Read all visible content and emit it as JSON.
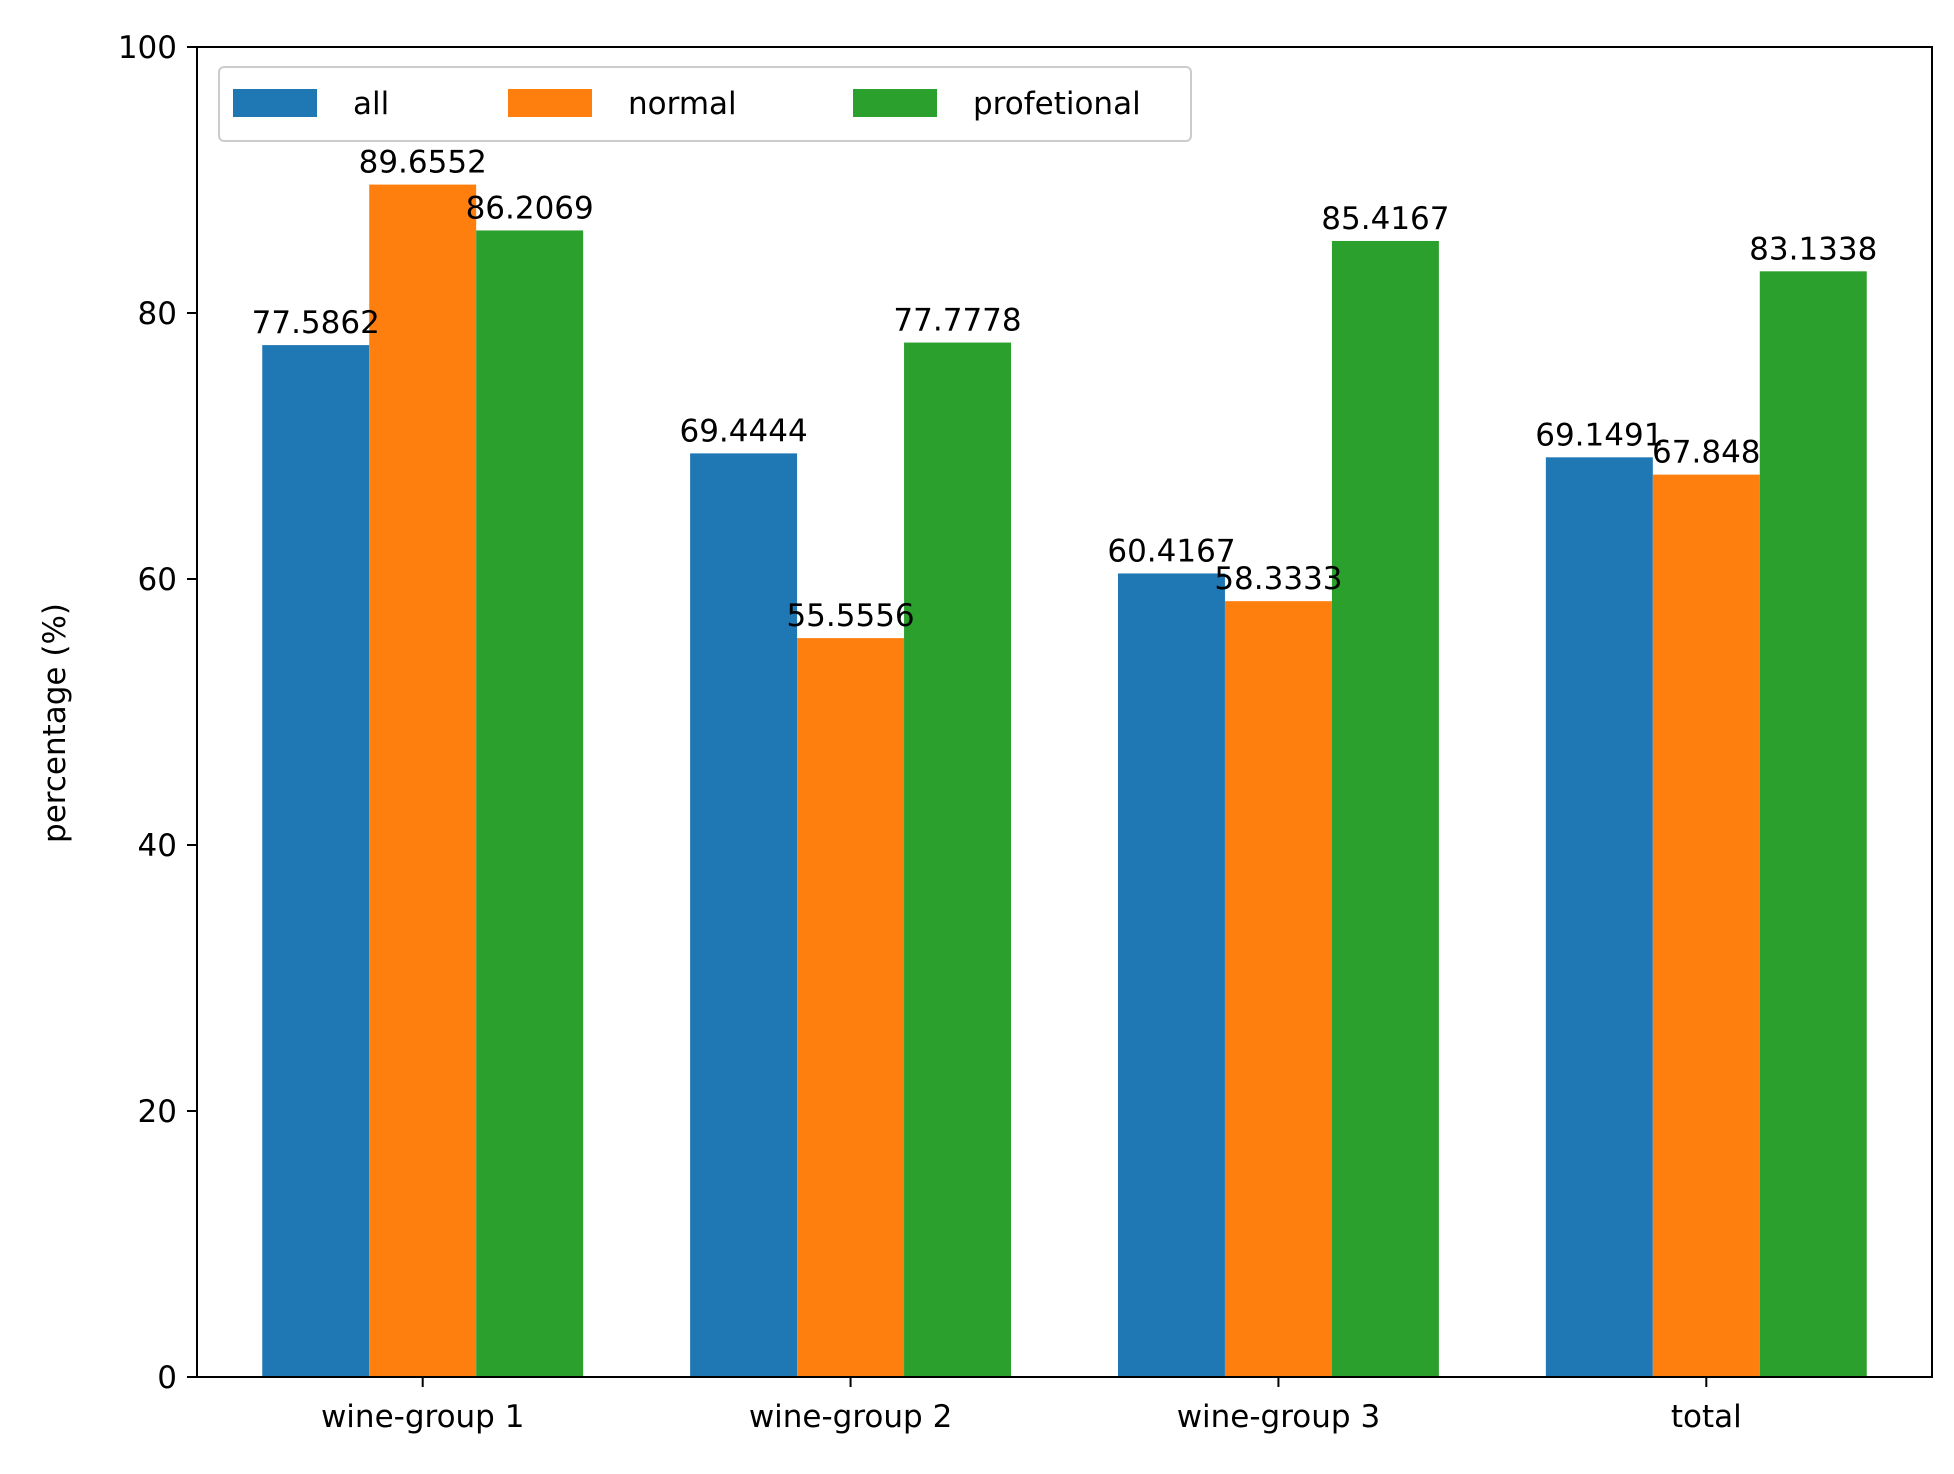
{
  "chart_data": {
    "type": "bar",
    "title": "",
    "xlabel": "",
    "ylabel": "percentage (%)",
    "ylim": [
      0,
      100
    ],
    "yticks": [
      0,
      20,
      40,
      60,
      80,
      100
    ],
    "grid": false,
    "legend_position": "top-left",
    "categories": [
      "wine-group 1",
      "wine-group 2",
      "wine-group 3",
      "total"
    ],
    "series": [
      {
        "name": "all",
        "color": "#1f77b4",
        "values": [
          77.5862,
          69.4444,
          60.4167,
          69.1491
        ],
        "labels": [
          "77.5862",
          "69.4444",
          "60.4167",
          "69.1491"
        ]
      },
      {
        "name": "normal",
        "color": "#ff7f0e",
        "values": [
          89.6552,
          55.5556,
          58.3333,
          67.848
        ],
        "labels": [
          "89.6552",
          "55.5556",
          "58.3333",
          "67.848"
        ]
      },
      {
        "name": "profetional",
        "color": "#2ca02c",
        "values": [
          86.2069,
          77.7778,
          85.4167,
          83.1338
        ],
        "labels": [
          "86.2069",
          "77.7778",
          "85.4167",
          "83.1338"
        ]
      }
    ]
  }
}
